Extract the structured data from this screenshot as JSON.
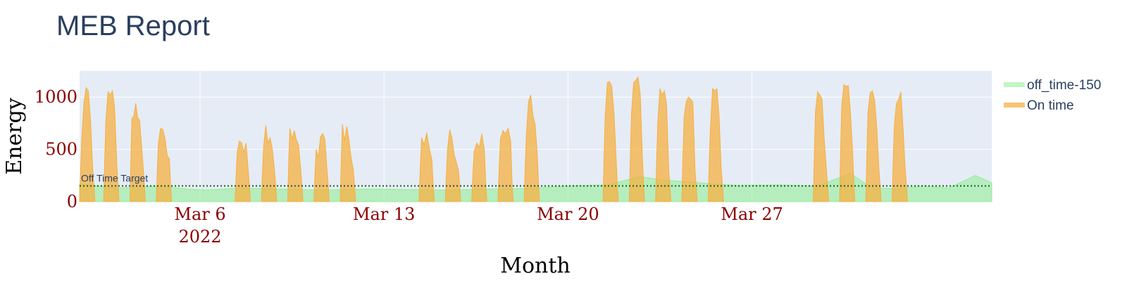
{
  "chart_data": {
    "type": "area",
    "title": "MEB Report",
    "xlabel": "Month",
    "ylabel": "Energy",
    "x_range": [
      "2022-03-01T10:00",
      "2022-04-05T03:00"
    ],
    "ylim": [
      0,
      1250
    ],
    "x_ticks": [
      {
        "date": "2022-03-06",
        "label": "Mar 6",
        "sublabel": "2022"
      },
      {
        "date": "2022-03-13",
        "label": "Mar 13",
        "sublabel": ""
      },
      {
        "date": "2022-03-20",
        "label": "Mar 20",
        "sublabel": ""
      },
      {
        "date": "2022-03-27",
        "label": "Mar 27",
        "sublabel": ""
      }
    ],
    "y_ticks": [
      0,
      500,
      1000
    ],
    "grid": true,
    "legend_position": "top-right",
    "reference_line": {
      "y": 150,
      "label": "Off Time Target",
      "color": "#1b5e20",
      "style": "dotted"
    },
    "series": [
      {
        "name": "off_time-150",
        "color": "#90ee90",
        "baseline": 140,
        "points": [
          [
            "2022-03-01T10:00",
            170
          ],
          [
            "2022-03-02T20:00",
            130
          ],
          [
            "2022-03-04T12:00",
            150
          ],
          [
            "2022-03-05T12:00",
            120
          ],
          [
            "2022-03-06T06:00",
            110
          ],
          [
            "2022-03-07T12:00",
            130
          ],
          [
            "2022-03-09T00:00",
            120
          ],
          [
            "2022-03-10T12:00",
            110
          ],
          [
            "2022-03-12T12:00",
            120
          ],
          [
            "2022-03-14T00:00",
            115
          ],
          [
            "2022-03-15T12:00",
            110
          ],
          [
            "2022-03-17T00:00",
            120
          ],
          [
            "2022-03-18T12:00",
            125
          ],
          [
            "2022-03-20T00:00",
            150
          ],
          [
            "2022-03-21T12:00",
            160
          ],
          [
            "2022-03-22T18:00",
            240
          ],
          [
            "2022-03-23T12:00",
            210
          ],
          [
            "2022-03-25T12:00",
            170
          ],
          [
            "2022-03-26T12:00",
            155
          ],
          [
            "2022-03-28T00:00",
            160
          ],
          [
            "2022-03-29T12:00",
            150
          ],
          [
            "2022-03-30T18:00",
            270
          ],
          [
            "2022-03-31T12:00",
            140
          ],
          [
            "2022-04-01T12:00",
            120
          ],
          [
            "2022-04-02T12:00",
            150
          ],
          [
            "2022-04-03T12:00",
            130
          ],
          [
            "2022-04-04T12:00",
            250
          ],
          [
            "2022-04-05T03:00",
            180
          ]
        ]
      },
      {
        "name": "On time",
        "color": "#f5b041",
        "peaks": [
          {
            "start": "2022-03-01T10:00",
            "end": "2022-03-02T00:00",
            "values": [
              600,
              950,
              1090,
              1060,
              780,
              300
            ]
          },
          {
            "start": "2022-03-02T08:00",
            "end": "2022-03-02T22:00",
            "values": [
              780,
              1050,
              1020,
              1060,
              900,
              350
            ]
          },
          {
            "start": "2022-03-03T08:00",
            "end": "2022-03-03T22:00",
            "values": [
              790,
              820,
              940,
              800,
              780,
              550,
              300
            ]
          },
          {
            "start": "2022-03-04T08:00",
            "end": "2022-03-04T22:00",
            "values": [
              560,
              700,
              690,
              600,
              440,
              410
            ]
          },
          {
            "start": "2022-03-07T08:00",
            "end": "2022-03-07T22:00",
            "values": [
              480,
              580,
              560,
              470,
              560,
              300
            ]
          },
          {
            "start": "2022-03-08T08:00",
            "end": "2022-03-08T22:00",
            "values": [
              520,
              730,
              560,
              610,
              500,
              300
            ]
          },
          {
            "start": "2022-03-09T08:00",
            "end": "2022-03-09T22:00",
            "values": [
              700,
              600,
              680,
              590,
              540,
              300
            ]
          },
          {
            "start": "2022-03-10T08:00",
            "end": "2022-03-10T22:00",
            "values": [
              500,
              420,
              620,
              650,
              600,
              300
            ]
          },
          {
            "start": "2022-03-11T08:00",
            "end": "2022-03-11T22:00",
            "values": [
              740,
              580,
              720,
              590,
              420,
              300
            ]
          },
          {
            "start": "2022-03-14T08:00",
            "end": "2022-03-14T22:00",
            "values": [
              610,
              540,
              660,
              510,
              400
            ]
          },
          {
            "start": "2022-03-15T08:00",
            "end": "2022-03-15T22:00",
            "values": [
              500,
              690,
              610,
              450,
              380,
              300
            ]
          },
          {
            "start": "2022-03-16T08:00",
            "end": "2022-03-16T22:00",
            "values": [
              480,
              560,
              520,
              650,
              490
            ]
          },
          {
            "start": "2022-03-17T08:00",
            "end": "2022-03-17T22:00",
            "values": [
              600,
              680,
              650,
              700,
              580
            ]
          },
          {
            "start": "2022-03-18T08:00",
            "end": "2022-03-18T22:00",
            "values": [
              640,
              960,
              1020,
              820,
              740,
              450
            ]
          },
          {
            "start": "2022-03-21T08:00",
            "end": "2022-03-21T22:00",
            "values": [
              820,
              1140,
              1150,
              1100,
              840,
              400
            ]
          },
          {
            "start": "2022-03-22T08:00",
            "end": "2022-03-22T22:00",
            "values": [
              840,
              1140,
              1160,
              1190,
              1020,
              400
            ]
          },
          {
            "start": "2022-03-23T08:00",
            "end": "2022-03-23T22:00",
            "values": [
              750,
              1080,
              1020,
              1060,
              930,
              300
            ]
          },
          {
            "start": "2022-03-24T08:00",
            "end": "2022-03-24T22:00",
            "values": [
              810,
              960,
              1000,
              980,
              950,
              300
            ]
          },
          {
            "start": "2022-03-25T08:00",
            "end": "2022-03-25T22:00",
            "values": [
              690,
              1080,
              1060,
              1080,
              810,
              300
            ]
          },
          {
            "start": "2022-03-29T08:00",
            "end": "2022-03-29T22:00",
            "values": [
              860,
              1050,
              1020,
              980,
              600,
              300
            ]
          },
          {
            "start": "2022-03-30T08:00",
            "end": "2022-03-30T22:00",
            "values": [
              920,
              1120,
              1100,
              1110,
              840,
              450
            ]
          },
          {
            "start": "2022-03-31T08:00",
            "end": "2022-03-31T22:00",
            "values": [
              860,
              1040,
              1060,
              970,
              700,
              300
            ]
          },
          {
            "start": "2022-04-01T08:00",
            "end": "2022-04-01T22:00",
            "values": [
              720,
              940,
              980,
              1050,
              700,
              300
            ]
          }
        ]
      }
    ]
  }
}
